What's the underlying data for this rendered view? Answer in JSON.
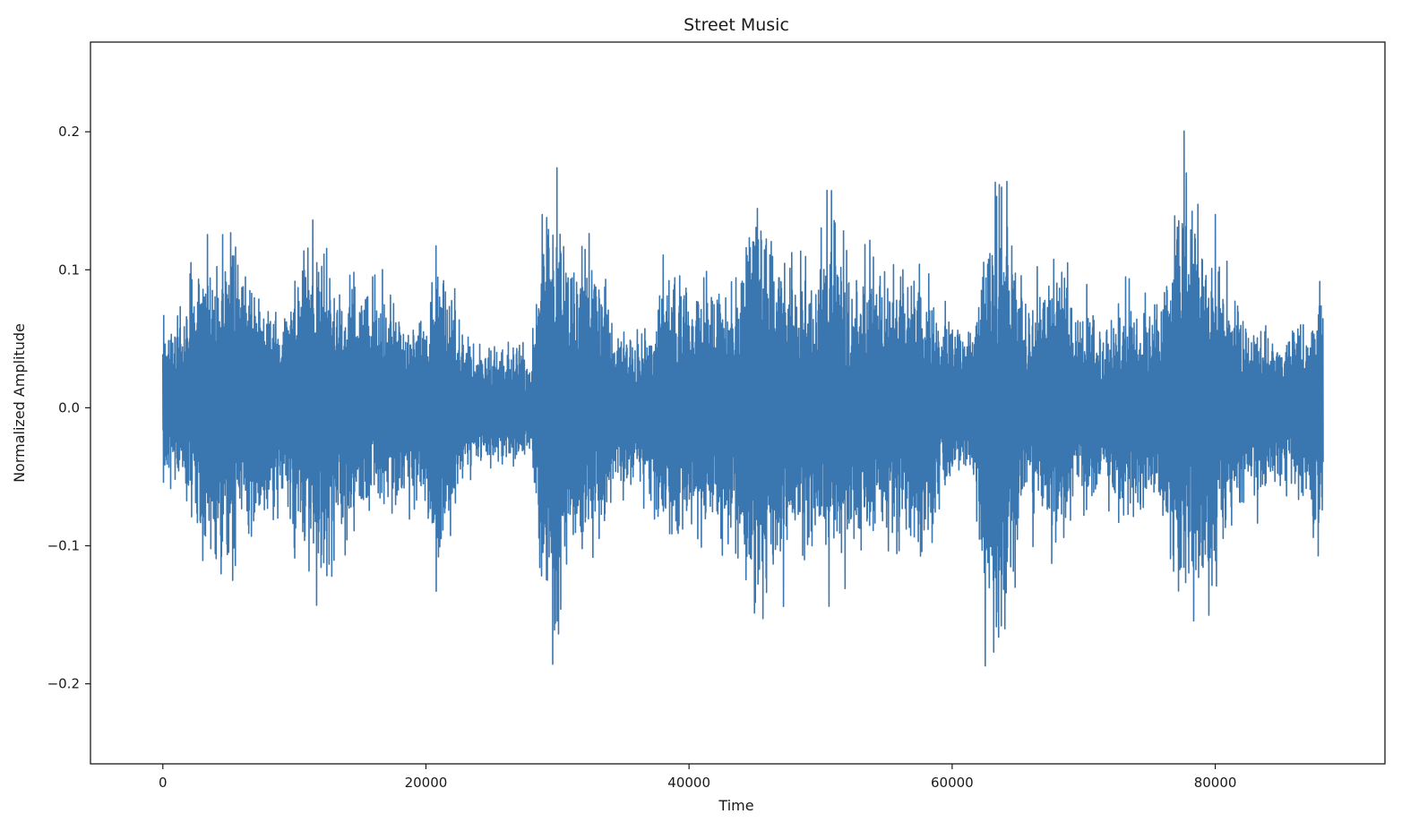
{
  "chart_data": {
    "type": "line",
    "title": "Street Music",
    "xlabel": "Time",
    "ylabel": "Normalized Amplitude",
    "xlim": [
      -5500,
      92900
    ],
    "ylim": [
      -0.258,
      0.265
    ],
    "x_ticks": [
      0,
      20000,
      40000,
      60000,
      80000
    ],
    "x_tick_labels": [
      "0",
      "20000",
      "40000",
      "60000",
      "80000"
    ],
    "y_ticks": [
      -0.2,
      -0.1,
      0.0,
      0.1,
      0.2
    ],
    "y_tick_labels": [
      "−0.2",
      "−0.1",
      "0.0",
      "0.1",
      "0.2"
    ],
    "grid": false,
    "series": [
      {
        "name": "Normalized Amplitude",
        "color": "#3a76b0",
        "n_samples": 88200,
        "envelope_time": [
          0,
          1500,
          3500,
          5500,
          7500,
          9000,
          10500,
          12000,
          13500,
          15500,
          17500,
          19500,
          21000,
          22500,
          24500,
          26500,
          28000,
          29000,
          29800,
          31000,
          33000,
          35000,
          37000,
          38500,
          40000,
          41500,
          43500,
          45000,
          46000,
          47500,
          49500,
          51000,
          52500,
          54500,
          56500,
          58000,
          60000,
          61500,
          62500,
          63500,
          64500,
          65500,
          67500,
          69500,
          71500,
          73500,
          75500,
          76500,
          77500,
          78500,
          80000,
          81500,
          83500,
          85500,
          87000,
          88200
        ],
        "envelope_max": [
          0.07,
          0.085,
          0.14,
          0.15,
          0.11,
          0.085,
          0.16,
          0.15,
          0.115,
          0.11,
          0.1,
          0.085,
          0.145,
          0.075,
          0.06,
          0.055,
          0.05,
          0.19,
          0.2,
          0.14,
          0.13,
          0.07,
          0.075,
          0.13,
          0.12,
          0.11,
          0.115,
          0.2,
          0.16,
          0.13,
          0.12,
          0.175,
          0.12,
          0.12,
          0.125,
          0.11,
          0.08,
          0.07,
          0.15,
          0.22,
          0.16,
          0.1,
          0.13,
          0.1,
          0.08,
          0.1,
          0.09,
          0.15,
          0.2,
          0.18,
          0.14,
          0.1,
          0.08,
          0.07,
          0.08,
          0.14
        ],
        "envelope_min": [
          -0.06,
          -0.08,
          -0.14,
          -0.14,
          -0.11,
          -0.08,
          -0.14,
          -0.15,
          -0.11,
          -0.1,
          -0.09,
          -0.08,
          -0.16,
          -0.06,
          -0.055,
          -0.05,
          -0.045,
          -0.18,
          -0.21,
          -0.13,
          -0.125,
          -0.07,
          -0.075,
          -0.15,
          -0.12,
          -0.11,
          -0.12,
          -0.18,
          -0.17,
          -0.13,
          -0.12,
          -0.15,
          -0.12,
          -0.12,
          -0.13,
          -0.13,
          -0.07,
          -0.06,
          -0.2,
          -0.21,
          -0.17,
          -0.1,
          -0.12,
          -0.1,
          -0.08,
          -0.1,
          -0.09,
          -0.14,
          -0.19,
          -0.18,
          -0.14,
          -0.1,
          -0.08,
          -0.07,
          -0.1,
          -0.13
        ]
      }
    ]
  }
}
